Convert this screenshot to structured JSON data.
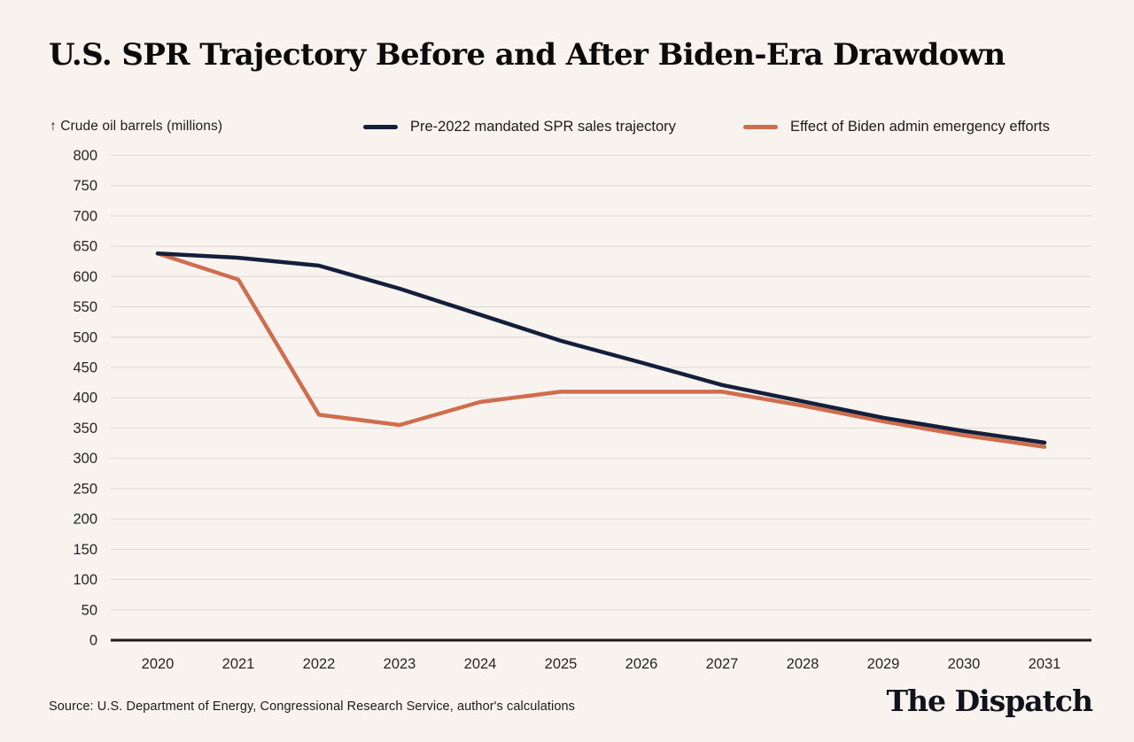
{
  "title": "U.S. SPR Trajectory Before and After Biden-Era Drawdown",
  "footer": {
    "source": "Source: U.S. Department of Energy, Congressional Research Service, author's calculations",
    "brand": "The Dispatch"
  },
  "colors": {
    "background": "#f8f3ee",
    "gridline": "#dcd8d2",
    "axis_line": "#1a1a1a",
    "text": "#1c1c1c",
    "navy_series": "#141f3b",
    "orange_series": "#cf6e4e"
  },
  "chart_data": {
    "type": "line",
    "title": "U.S. SPR Trajectory Before and After Biden-Era Drawdown",
    "unit_label": "↑ Crude oil barrels (millions)",
    "xlabel": "",
    "ylabel": "Crude oil barrels (millions)",
    "x": [
      2020,
      2021,
      2022,
      2023,
      2024,
      2025,
      2026,
      2027,
      2028,
      2029,
      2030,
      2031
    ],
    "series": [
      {
        "name": "Pre-2022 mandated SPR sales trajectory",
        "color": "#141f3b",
        "values": [
          638,
          631,
          618,
          580,
          537,
          494,
          458,
          421,
          394,
          367,
          345,
          326
        ]
      },
      {
        "name": "Effect of Biden admin emergency efforts",
        "color": "#cf6e4e",
        "values": [
          638,
          595,
          372,
          355,
          393,
          410,
          410,
          410,
          387,
          361,
          338,
          319
        ]
      }
    ],
    "ylim": [
      0,
      800
    ],
    "ytick_step": 50,
    "grid": "horizontal",
    "legend_position": "top"
  }
}
